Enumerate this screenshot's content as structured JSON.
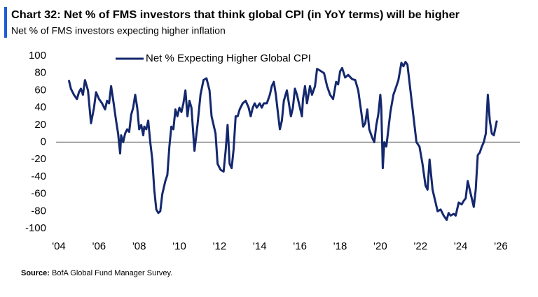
{
  "chart_data": {
    "type": "line",
    "title": "Chart 32: Net % of FMS investors that think global CPI (in YoY terms) will be higher",
    "subtitle": "Net % of FMS investors expecting higher inflation",
    "source_label": "Source:",
    "source": "BofA Global Fund Manager Survey.",
    "xlim": [
      2004,
      2026
    ],
    "xticks": [
      {
        "value": 2004,
        "label": "'04"
      },
      {
        "value": 2006,
        "label": "'06"
      },
      {
        "value": 2008,
        "label": "'08"
      },
      {
        "value": 2010,
        "label": "'10"
      },
      {
        "value": 2012,
        "label": "'12"
      },
      {
        "value": 2014,
        "label": "'14"
      },
      {
        "value": 2016,
        "label": "'16"
      },
      {
        "value": 2018,
        "label": "'18"
      },
      {
        "value": 2020,
        "label": "'20"
      },
      {
        "value": 2022,
        "label": "'22"
      },
      {
        "value": 2024,
        "label": "'24"
      },
      {
        "value": 2026,
        "label": "'26"
      }
    ],
    "ylim": [
      -100,
      100
    ],
    "yticks": [
      -100,
      -80,
      -60,
      -40,
      -20,
      0,
      20,
      40,
      60,
      80,
      100
    ],
    "legend": "top",
    "series": [
      {
        "name": "Net % Expecting Higher Global CPI",
        "color": "#14286e",
        "x": [
          2004.5,
          2004.6,
          2004.75,
          2004.9,
          2005.0,
          2005.1,
          2005.2,
          2005.3,
          2005.45,
          2005.6,
          2005.75,
          2005.85,
          2006.0,
          2006.15,
          2006.3,
          2006.4,
          2006.5,
          2006.6,
          2006.7,
          2006.85,
          2006.95,
          2007.05,
          2007.1,
          2007.2,
          2007.3,
          2007.4,
          2007.5,
          2007.6,
          2007.7,
          2007.8,
          2007.9,
          2008.0,
          2008.1,
          2008.2,
          2008.25,
          2008.35,
          2008.45,
          2008.55,
          2008.65,
          2008.75,
          2008.85,
          2008.95,
          2009.05,
          2009.15,
          2009.3,
          2009.4,
          2009.5,
          2009.6,
          2009.7,
          2009.8,
          2009.9,
          2010.0,
          2010.1,
          2010.2,
          2010.3,
          2010.4,
          2010.5,
          2010.6,
          2010.75,
          2010.9,
          2011.05,
          2011.2,
          2011.35,
          2011.5,
          2011.6,
          2011.7,
          2011.8,
          2011.9,
          2012.05,
          2012.2,
          2012.3,
          2012.4,
          2012.5,
          2012.6,
          2012.7,
          2012.8,
          2012.9,
          2013.0,
          2013.15,
          2013.3,
          2013.45,
          2013.55,
          2013.65,
          2013.75,
          2013.85,
          2014.0,
          2014.1,
          2014.2,
          2014.35,
          2014.5,
          2014.6,
          2014.7,
          2014.8,
          2014.9,
          2015.0,
          2015.1,
          2015.2,
          2015.35,
          2015.45,
          2015.55,
          2015.65,
          2015.75,
          2015.85,
          2016.0,
          2016.1,
          2016.15,
          2016.25,
          2016.35,
          2016.5,
          2016.6,
          2016.75,
          2016.85,
          2017.0,
          2017.2,
          2017.35,
          2017.5,
          2017.65,
          2017.8,
          2017.9,
          2018.0,
          2018.1,
          2018.25,
          2018.4,
          2018.6,
          2018.75,
          2018.9,
          2019.05,
          2019.15,
          2019.25,
          2019.35,
          2019.45,
          2019.6,
          2019.7,
          2019.8,
          2019.9,
          2020.0,
          2020.05,
          2020.12,
          2020.2,
          2020.3,
          2020.4,
          2020.5,
          2020.65,
          2020.8,
          2020.9,
          2021.05,
          2021.15,
          2021.25,
          2021.35,
          2021.5,
          2021.65,
          2021.8,
          2021.95,
          2022.1,
          2022.25,
          2022.35,
          2022.45,
          2022.6,
          2022.75,
          2022.85,
          2023.0,
          2023.15,
          2023.3,
          2023.4,
          2023.5,
          2023.65,
          2023.75,
          2023.9,
          2024.05,
          2024.15,
          2024.25,
          2024.35,
          2024.5,
          2024.65,
          2024.75,
          2024.85,
          2024.95,
          2025.05,
          2025.15,
          2025.25,
          2025.35,
          2025.45,
          2025.55,
          2025.65,
          2025.8
        ],
        "values": [
          72,
          62,
          55,
          50,
          58,
          62,
          55,
          72,
          60,
          22,
          40,
          58,
          50,
          45,
          38,
          48,
          45,
          65,
          50,
          25,
          10,
          -13,
          8,
          0,
          10,
          15,
          12,
          32,
          40,
          55,
          40,
          15,
          20,
          8,
          18,
          15,
          25,
          0,
          -20,
          -55,
          -78,
          -82,
          -80,
          -60,
          -45,
          -38,
          -5,
          18,
          15,
          38,
          30,
          40,
          35,
          45,
          60,
          30,
          48,
          40,
          -10,
          20,
          55,
          72,
          74,
          60,
          30,
          20,
          10,
          -25,
          -32,
          -34,
          -10,
          20,
          -25,
          -30,
          -8,
          30,
          30,
          38,
          45,
          48,
          40,
          30,
          40,
          45,
          40,
          45,
          40,
          45,
          45,
          55,
          65,
          70,
          55,
          35,
          15,
          25,
          48,
          60,
          45,
          30,
          40,
          62,
          55,
          40,
          30,
          50,
          65,
          45,
          65,
          55,
          65,
          85,
          83,
          80,
          65,
          55,
          50,
          70,
          67,
          82,
          86,
          75,
          78,
          73,
          72,
          60,
          35,
          18,
          22,
          38,
          15,
          5,
          0,
          20,
          32,
          55,
          40,
          -30,
          0,
          -5,
          15,
          35,
          55,
          65,
          72,
          92,
          88,
          93,
          90,
          60,
          30,
          0,
          -5,
          -25,
          -50,
          -55,
          -20,
          -55,
          -70,
          -80,
          -78,
          -85,
          -90,
          -82,
          -85,
          -83,
          -85,
          -70,
          -72,
          -68,
          -65,
          -45,
          -60,
          -75,
          -55,
          -15,
          -12,
          -5,
          0,
          10,
          55,
          25,
          10,
          8,
          25
        ]
      }
    ]
  }
}
